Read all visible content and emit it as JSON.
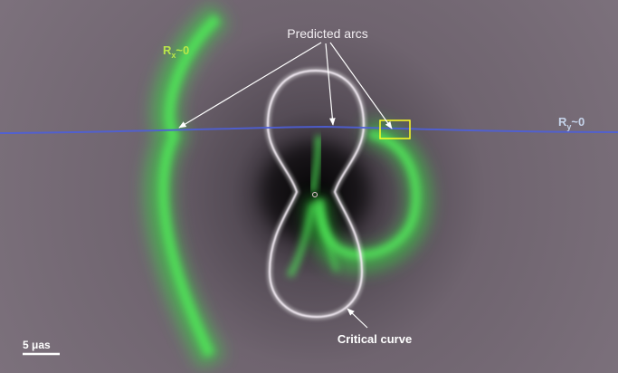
{
  "annotations": {
    "predicted_arcs": "Predicted arcs",
    "critical_curve": "Critical curve",
    "rx_label": {
      "main": "R",
      "sub": "x",
      "suffix": "~0"
    },
    "ry_label": {
      "main": "R",
      "sub": "y",
      "suffix": "~0"
    }
  },
  "scale_bar": {
    "label": "5 μas"
  },
  "colors": {
    "background": "#7b707b",
    "arc_glow": "#3fe04a",
    "critical_curve": "#f2e8f4",
    "ry_line": "#4e5fd8",
    "rx_label": "#b9e64a",
    "ry_label": "#c5d3ea",
    "highlight_box": "#ffff22",
    "annotation_text": "#ffffff"
  }
}
